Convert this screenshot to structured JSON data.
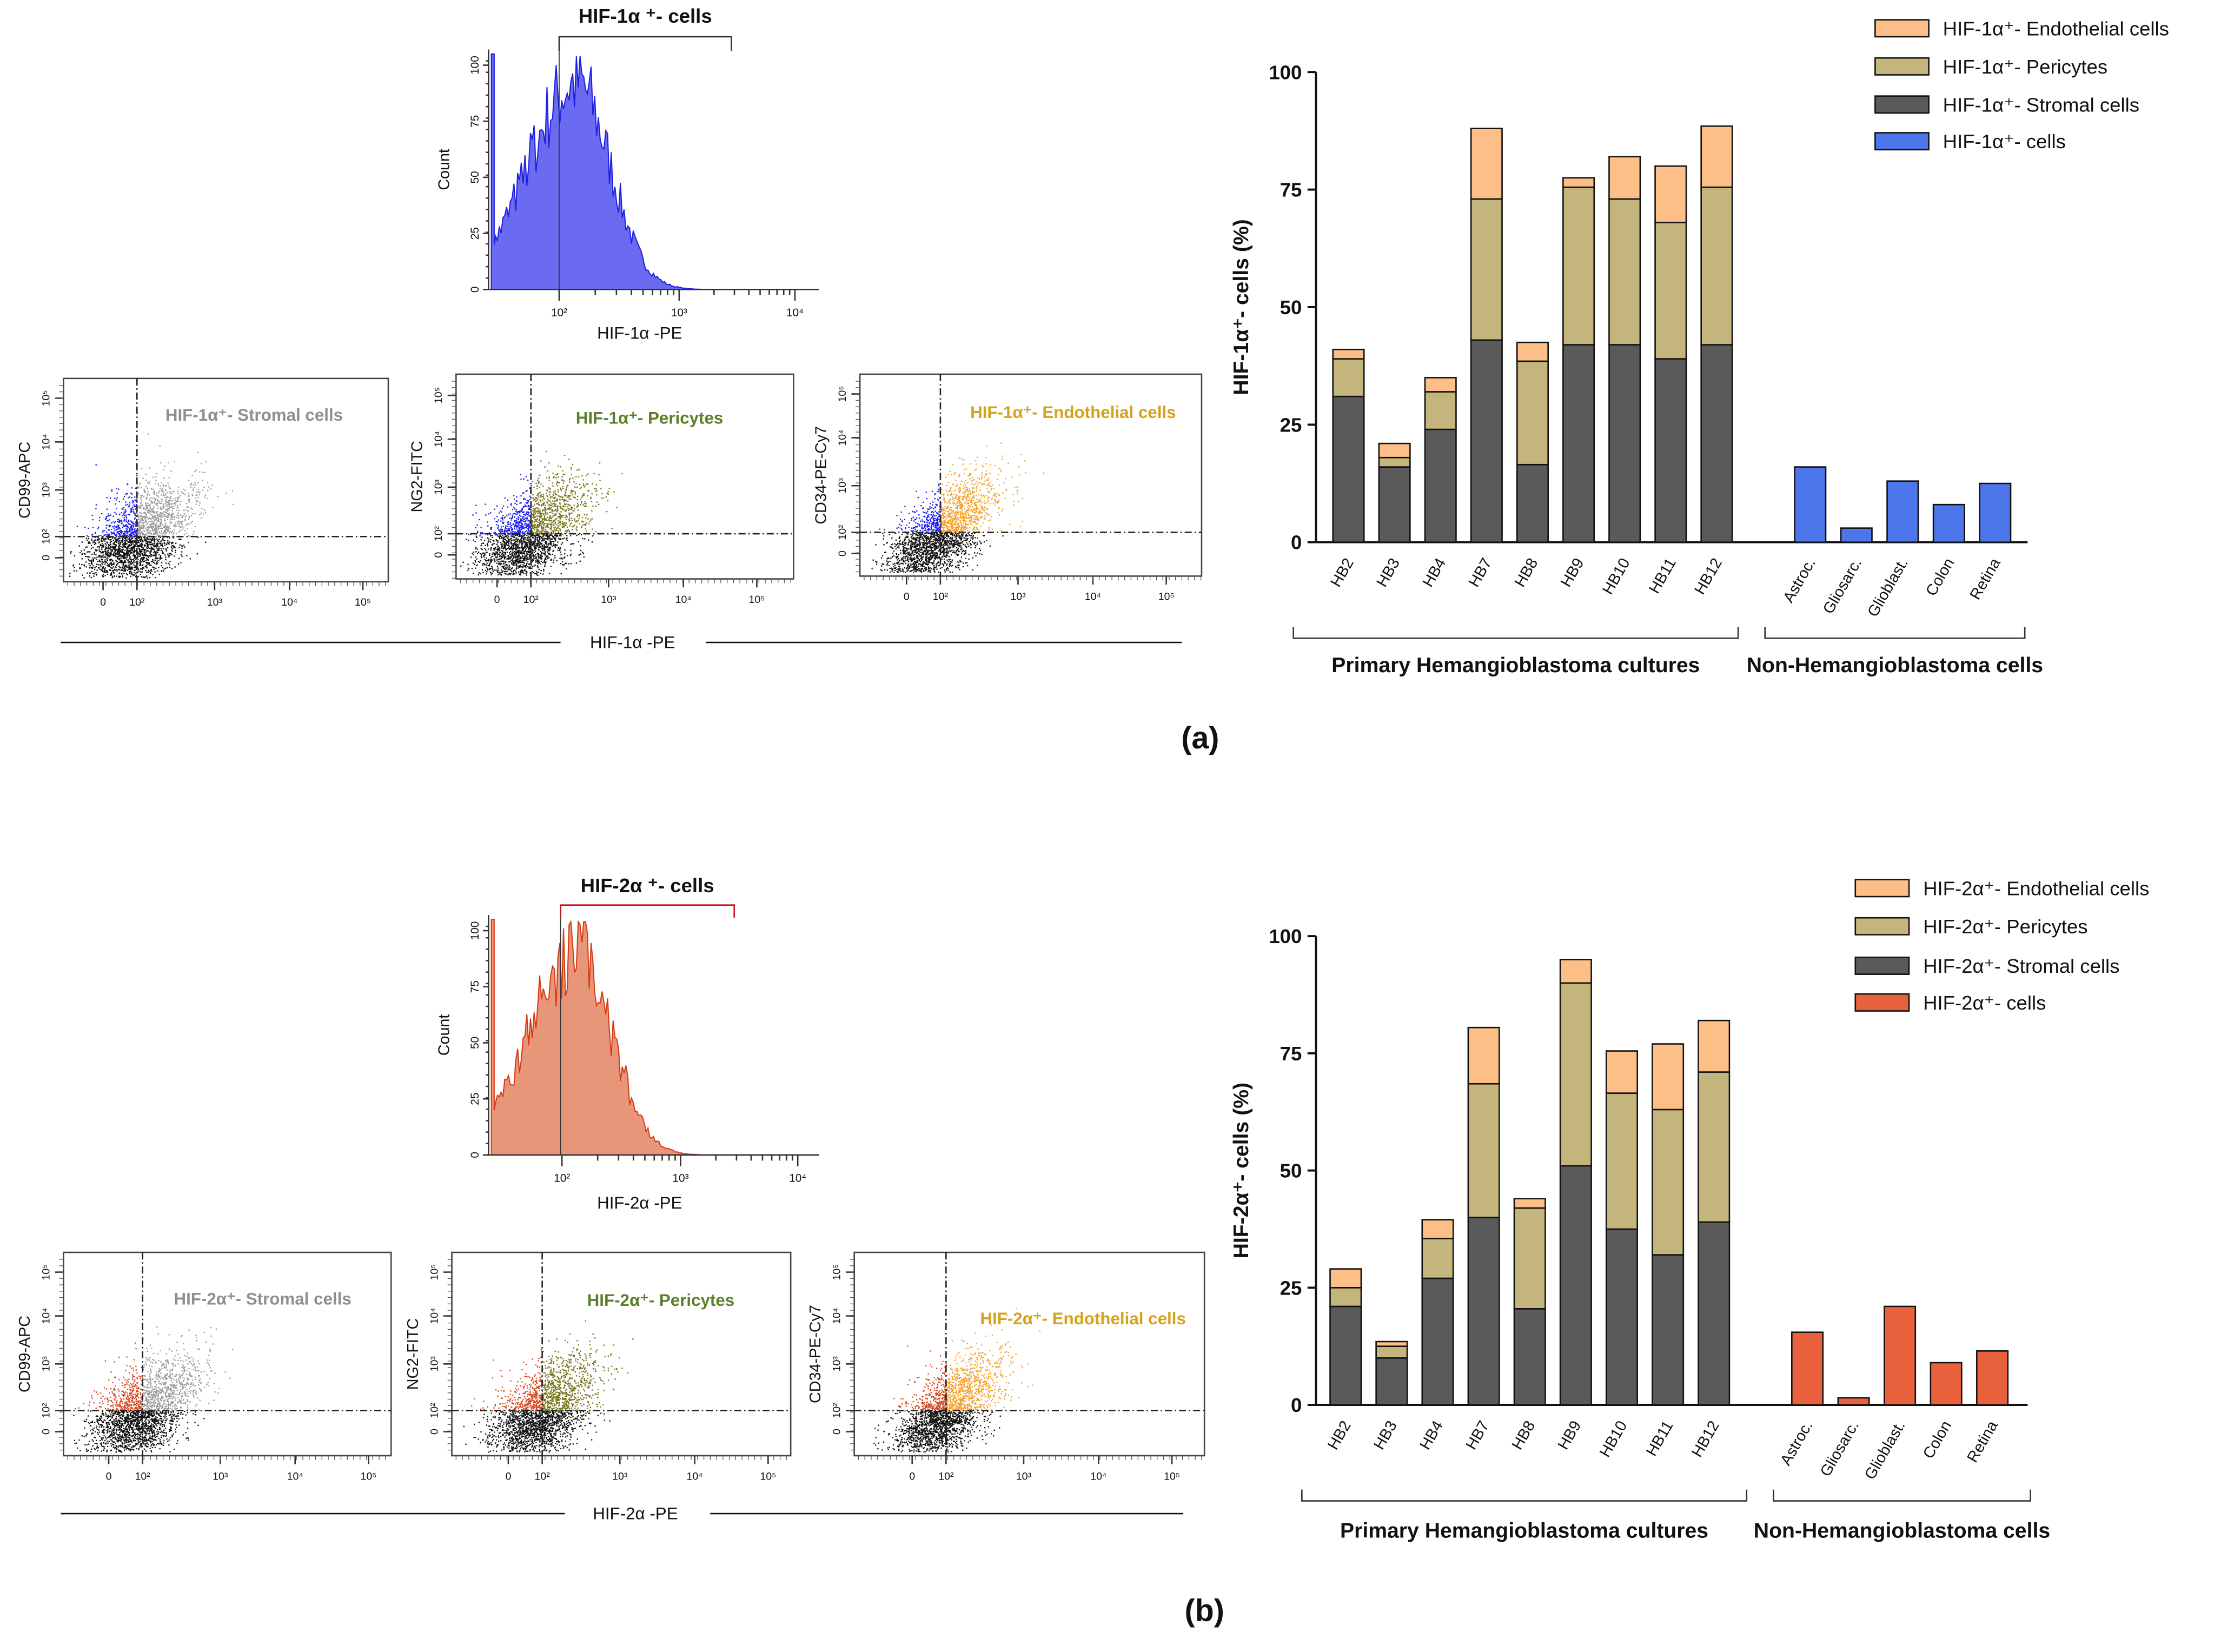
{
  "panels": [
    {
      "label": "(a)",
      "histogram": {
        "title": "HIF-1α ⁺- cells",
        "xlabel": "HIF-1α -PE",
        "ylabel": "Count",
        "yticks": [
          "0",
          "25",
          "50",
          "75",
          "100"
        ],
        "xticks": [
          "10²",
          "10³",
          "10⁴"
        ],
        "fill_color": "#6b6bf2",
        "line_color": "#1f1fe0",
        "gate_color": "#333333"
      },
      "scatter_xticks": [
        "0",
        "10²",
        "10³",
        "10⁴",
        "10⁵"
      ],
      "scatter_yticks": [
        "0",
        "10²",
        "10³",
        "10⁴",
        "10⁵"
      ],
      "scatter_plots": [
        {
          "ylabel": "CD99-APC",
          "gate_label": "HIF-1α⁺- Stromal cells",
          "label_color": "#8f8f8f",
          "positive_color": "#9a9a9a",
          "upper_left_color": "#1a1af0"
        },
        {
          "ylabel": "NG2-FITC",
          "gate_label": "HIF-1α⁺- Pericytes",
          "label_color": "#5b7f2a",
          "positive_color": "#77741a",
          "upper_left_color": "#1a1af0"
        },
        {
          "ylabel": "CD34-PE-Cy7",
          "gate_label": "HIF-1α⁺- Endothelial cells",
          "label_color": "#d6a21a",
          "positive_color": "#f5a02a",
          "upper_left_color": "#1a1af0"
        }
      ],
      "common_xlabel": "HIF-1α -PE"
    },
    {
      "label": "(b)",
      "histogram": {
        "title": "HIF-2α ⁺- cells",
        "xlabel": "HIF-2α -PE",
        "ylabel": "Count",
        "yticks": [
          "0",
          "25",
          "50",
          "75",
          "100"
        ],
        "xticks": [
          "10²",
          "10³",
          "10⁴"
        ],
        "fill_color": "#e8967a",
        "line_color": "#d63c14",
        "gate_color": "#c0141e"
      },
      "scatter_xticks": [
        "0",
        "10²",
        "10³",
        "10⁴",
        "10⁵"
      ],
      "scatter_yticks": [
        "0",
        "10²",
        "10³",
        "10⁴",
        "10⁵"
      ],
      "scatter_plots": [
        {
          "ylabel": "CD99-APC",
          "gate_label": "HIF-2α⁺- Stromal cells",
          "label_color": "#8f8f8f",
          "positive_color": "#9a9a9a",
          "upper_left_color": "#d9461e"
        },
        {
          "ylabel": "NG2-FITC",
          "gate_label": "HIF-2α⁺- Pericytes",
          "label_color": "#5b7f2a",
          "positive_color": "#77741a",
          "upper_left_color": "#d9461e"
        },
        {
          "ylabel": "CD34-PE-Cy7",
          "gate_label": "HIF-2α⁺- Endothelial cells",
          "label_color": "#d6a21a",
          "positive_color": "#f5a02a",
          "upper_left_color": "#d9461e"
        }
      ],
      "common_xlabel": "HIF-2α -PE"
    }
  ],
  "chart_data": [
    {
      "type": "bar",
      "stacked": true,
      "ylabel": "HIF-1α⁺- cells (%)",
      "ylim": [
        0,
        100
      ],
      "yticks": [
        "0",
        "25",
        "50",
        "75",
        "100"
      ],
      "categories": [
        "HB2",
        "HB3",
        "HB4",
        "HB7",
        "HB8",
        "HB9",
        "HB10",
        "HB11",
        "HB12",
        "Astroc.",
        "Gliosarc.",
        "Glioblast.",
        "Colon",
        "Retina"
      ],
      "groups": [
        {
          "label": "Primary Hemangioblastoma cultures",
          "categories": [
            "HB2",
            "HB3",
            "HB4",
            "HB7",
            "HB8",
            "HB9",
            "HB10",
            "HB11",
            "HB12"
          ]
        },
        {
          "label": "Non-Hemangioblastoma cells",
          "categories": [
            "Astroc.",
            "Gliosarc.",
            "Glioblast.",
            "Colon",
            "Retina"
          ]
        }
      ],
      "series": [
        {
          "name": "HIF-1α⁺- Stromal cells",
          "color": "#5a5a5a",
          "values": [
            31,
            16,
            24,
            43,
            16.5,
            42,
            42,
            39,
            42,
            null,
            null,
            null,
            null,
            null
          ]
        },
        {
          "name": "HIF-1α⁺- Pericytes",
          "color": "#c3b57b",
          "values": [
            8,
            2,
            8,
            30,
            22,
            33.5,
            31,
            29,
            33.5,
            null,
            null,
            null,
            null,
            null
          ]
        },
        {
          "name": "HIF-1α⁺- Endothelial cells",
          "color": "#fdbf87",
          "values": [
            2,
            3,
            3,
            15,
            4,
            2,
            9,
            12,
            13,
            null,
            null,
            null,
            null,
            null
          ]
        },
        {
          "name": "HIF-1α⁺- cells",
          "color": "#4d76ea",
          "values": [
            null,
            null,
            null,
            null,
            null,
            null,
            null,
            null,
            null,
            16,
            3,
            13,
            8,
            12.5
          ]
        }
      ],
      "legend_order": [
        2,
        1,
        0,
        3
      ],
      "legend_position": "top-right"
    },
    {
      "type": "bar",
      "stacked": true,
      "ylabel": "HIF-2α⁺- cells (%)",
      "ylim": [
        0,
        100
      ],
      "yticks": [
        "0",
        "25",
        "50",
        "75",
        "100"
      ],
      "categories": [
        "HB2",
        "HB3",
        "HB4",
        "HB7",
        "HB8",
        "HB9",
        "HB10",
        "HB11",
        "HB12",
        "Astroc.",
        "Gliosarc.",
        "Glioblast.",
        "Colon",
        "Retina"
      ],
      "groups": [
        {
          "label": "Primary Hemangioblastoma cultures",
          "categories": [
            "HB2",
            "HB3",
            "HB4",
            "HB7",
            "HB8",
            "HB9",
            "HB10",
            "HB11",
            "HB12"
          ]
        },
        {
          "label": "Non-Hemangioblastoma cells",
          "categories": [
            "Astroc.",
            "Gliosarc.",
            "Glioblast.",
            "Colon",
            "Retina"
          ]
        }
      ],
      "series": [
        {
          "name": "HIF-2α⁺- Stromal cells",
          "color": "#5a5a5a",
          "values": [
            21,
            10,
            27,
            40,
            20.5,
            51,
            37.5,
            32,
            39,
            null,
            null,
            null,
            null,
            null
          ]
        },
        {
          "name": "HIF-2α⁺- Pericytes",
          "color": "#c3b57b",
          "values": [
            4,
            2.5,
            8.5,
            28.5,
            21.5,
            39,
            29,
            31,
            32,
            null,
            null,
            null,
            null,
            null
          ]
        },
        {
          "name": "HIF-2α⁺- Endothelial cells",
          "color": "#fdbf87",
          "values": [
            4,
            1,
            4,
            12,
            2,
            5,
            9,
            14,
            11,
            null,
            null,
            null,
            null,
            null
          ]
        },
        {
          "name": "HIF-2α⁺- cells",
          "color": "#e8603c",
          "values": [
            null,
            null,
            null,
            null,
            null,
            null,
            null,
            null,
            null,
            15.5,
            1.5,
            21,
            9,
            11.5
          ]
        }
      ],
      "legend_order": [
        2,
        1,
        0,
        3
      ],
      "legend_position": "top-right"
    }
  ]
}
